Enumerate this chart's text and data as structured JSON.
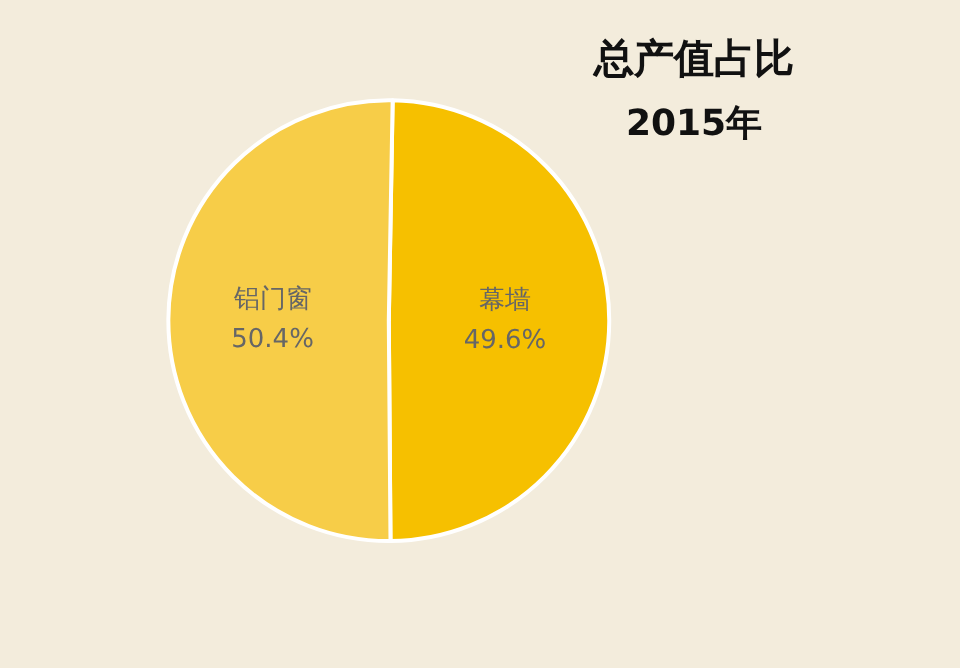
{
  "chart_data": {
    "type": "pie",
    "title": "总产值占比",
    "subtitle": "2015年",
    "categories": [
      "幕墙",
      "铝门窗"
    ],
    "values": [
      49.6,
      50.4
    ],
    "colors": [
      "#f6c000",
      "#f7cd48"
    ],
    "value_labels": [
      "49.6%",
      "50.4%"
    ],
    "legend": false
  }
}
